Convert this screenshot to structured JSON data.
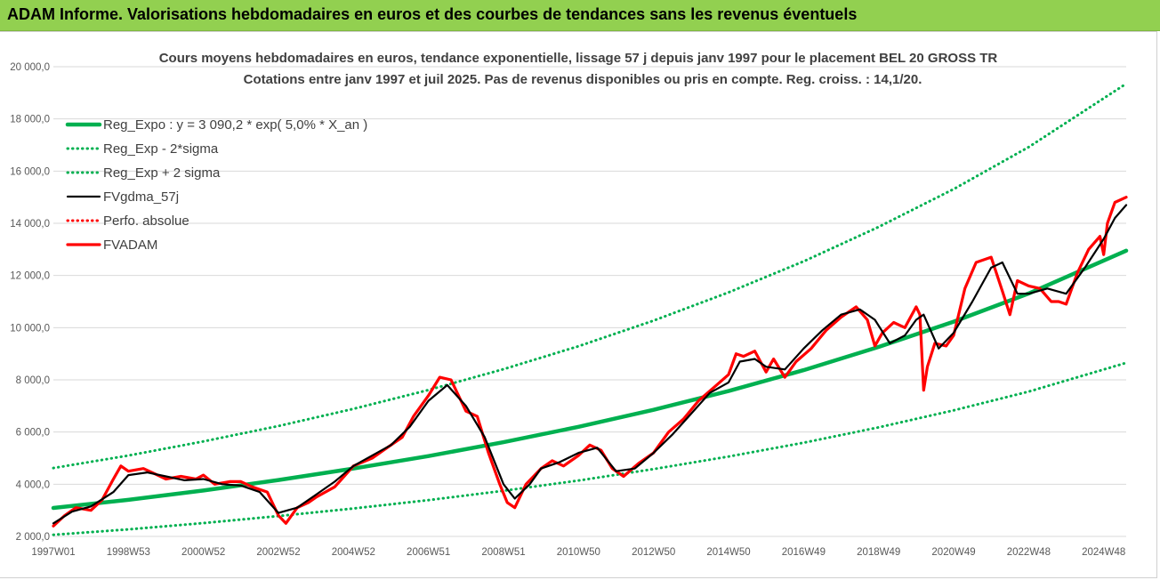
{
  "header": {
    "title": "ADAM Informe. Valorisations hebdomadaires en euros et des courbes de tendances sans les revenus éventuels"
  },
  "colors": {
    "banner": "#92d050",
    "regression": "#00b050",
    "price": "#ff0000",
    "smoothed": "#000000"
  },
  "chart_data": {
    "type": "line",
    "title": "Cours moyens hebdomadaires en euros, tendance exponentielle, lissage 57 j depuis janv 1997 pour le placement BEL 20 GROSS TR",
    "subtitle": "Cotations entre janv 1997 et juil 2025. Pas de revenus disponibles ou pris en compte. Reg. croiss. : 14,1/20.",
    "ylim": [
      2000,
      20000
    ],
    "xlim": [
      1997.0,
      2025.6
    ],
    "y_ticks": [
      "2 000,0",
      "4 000,0",
      "6 000,0",
      "8 000,0",
      "10 000,0",
      "12 000,0",
      "14 000,0",
      "16 000,0",
      "18 000,0",
      "20 000,0"
    ],
    "x_ticks": [
      {
        "label": "1997W01",
        "x": 1997.0
      },
      {
        "label": "1998W53",
        "x": 1999.0
      },
      {
        "label": "2000W52",
        "x": 2001.0
      },
      {
        "label": "2002W52",
        "x": 2003.0
      },
      {
        "label": "2004W52",
        "x": 2005.0
      },
      {
        "label": "2006W51",
        "x": 2007.0
      },
      {
        "label": "2008W51",
        "x": 2009.0
      },
      {
        "label": "2010W50",
        "x": 2011.0
      },
      {
        "label": "2012W50",
        "x": 2013.0
      },
      {
        "label": "2014W50",
        "x": 2015.0
      },
      {
        "label": "2016W49",
        "x": 2017.0
      },
      {
        "label": "2018W49",
        "x": 2019.0
      },
      {
        "label": "2020W49",
        "x": 2021.0
      },
      {
        "label": "2022W48",
        "x": 2023.0
      },
      {
        "label": "2024W48",
        "x": 2025.0
      }
    ],
    "grid": true,
    "legend_position": "top-left",
    "series": [
      {
        "name": "Reg_Expo : y = 3 090,2 * exp( 5,0% *  X_an )",
        "style": "solid-thick",
        "color": "#00b050",
        "x": [
          1997,
          1999,
          2001,
          2003,
          2005,
          2007,
          2009,
          2011,
          2013,
          2015,
          2017,
          2019,
          2021,
          2023,
          2025.6
        ],
        "values": [
          3090,
          3400,
          3760,
          4160,
          4600,
          5080,
          5610,
          6200,
          6850,
          7570,
          8370,
          9260,
          10230,
          11310,
          12950
        ]
      },
      {
        "name": "Reg_Exp - 2*sigma",
        "style": "dotted",
        "color": "#00b050",
        "x": [
          1997,
          1999,
          2001,
          2003,
          2005,
          2007,
          2009,
          2011,
          2013,
          2015,
          2017,
          2019,
          2021,
          2023,
          2025.6
        ],
        "values": [
          2060,
          2270,
          2510,
          2780,
          3070,
          3390,
          3750,
          4140,
          4580,
          5060,
          5590,
          6180,
          6830,
          7550,
          8650
        ]
      },
      {
        "name": "Reg_Exp + 2 sigma",
        "style": "dotted",
        "color": "#00b050",
        "x": [
          1997,
          1999,
          2001,
          2003,
          2005,
          2007,
          2009,
          2011,
          2013,
          2015,
          2017,
          2019,
          2021,
          2023,
          2025.6
        ],
        "values": [
          4620,
          5100,
          5640,
          6230,
          6890,
          7610,
          8410,
          9290,
          10270,
          11350,
          12540,
          13860,
          15310,
          16920,
          19350
        ]
      },
      {
        "name": "FVgdma_57j",
        "style": "solid",
        "color": "#000000",
        "x": [
          1997.0,
          1997.5,
          1998.0,
          1998.6,
          1999.0,
          1999.5,
          2000.0,
          2000.5,
          2001.0,
          2001.5,
          2002.0,
          2002.5,
          2003.0,
          2003.5,
          2004.0,
          2004.5,
          2005.0,
          2005.5,
          2006.0,
          2006.5,
          2007.0,
          2007.5,
          2008.0,
          2008.5,
          2009.0,
          2009.3,
          2009.7,
          2010.0,
          2010.5,
          2011.0,
          2011.5,
          2012.0,
          2012.5,
          2013.0,
          2013.5,
          2014.0,
          2014.5,
          2015.0,
          2015.3,
          2015.7,
          2016.0,
          2016.5,
          2017.0,
          2017.5,
          2018.0,
          2018.5,
          2018.9,
          2019.3,
          2019.7,
          2020.0,
          2020.2,
          2020.6,
          2021.0,
          2021.5,
          2022.0,
          2022.3,
          2022.7,
          2023.0,
          2023.5,
          2024.0,
          2024.5,
          2025.0,
          2025.3,
          2025.6
        ],
        "values": [
          2500,
          2950,
          3150,
          3700,
          4350,
          4450,
          4300,
          4150,
          4200,
          4000,
          3950,
          3700,
          2900,
          3100,
          3600,
          4100,
          4700,
          5100,
          5500,
          6200,
          7200,
          7800,
          7000,
          5800,
          4000,
          3450,
          4000,
          4600,
          4850,
          5200,
          5400,
          4500,
          4600,
          5200,
          5900,
          6700,
          7500,
          7900,
          8700,
          8800,
          8500,
          8400,
          9200,
          9900,
          10500,
          10700,
          10300,
          9400,
          9700,
          10300,
          10500,
          9200,
          9800,
          11000,
          12300,
          12500,
          11300,
          11300,
          11500,
          11300,
          12300,
          13400,
          14200,
          14700
        ]
      },
      {
        "name": "Perfo. absolue",
        "style": "dotted",
        "color": "#ff0000",
        "x": [],
        "values": []
      },
      {
        "name": "FVADAM",
        "style": "solid-thick",
        "color": "#ff0000",
        "x": [
          1997.0,
          1997.3,
          1997.6,
          1998.0,
          1998.3,
          1998.6,
          1998.8,
          1999.0,
          1999.4,
          1999.7,
          2000.0,
          2000.4,
          2000.8,
          2001.0,
          2001.3,
          2001.7,
          2002.0,
          2002.3,
          2002.7,
          2003.0,
          2003.2,
          2003.5,
          2003.8,
          2004.0,
          2004.5,
          2005.0,
          2005.5,
          2006.0,
          2006.3,
          2006.6,
          2007.0,
          2007.3,
          2007.6,
          2008.0,
          2008.3,
          2008.6,
          2008.9,
          2009.1,
          2009.3,
          2009.6,
          2010.0,
          2010.3,
          2010.6,
          2011.0,
          2011.3,
          2011.6,
          2011.9,
          2012.2,
          2012.6,
          2013.0,
          2013.4,
          2013.8,
          2014.2,
          2014.6,
          2015.0,
          2015.2,
          2015.4,
          2015.7,
          2016.0,
          2016.2,
          2016.5,
          2016.8,
          2017.2,
          2017.6,
          2018.0,
          2018.4,
          2018.7,
          2018.9,
          2019.1,
          2019.4,
          2019.7,
          2020.0,
          2020.1,
          2020.2,
          2020.3,
          2020.5,
          2020.8,
          2021.0,
          2021.3,
          2021.6,
          2022.0,
          2022.3,
          2022.5,
          2022.7,
          2023.0,
          2023.3,
          2023.6,
          2023.8,
          2024.0,
          2024.3,
          2024.6,
          2024.9,
          2025.0,
          2025.1,
          2025.3,
          2025.6
        ],
        "values": [
          2400,
          2800,
          3100,
          3000,
          3400,
          4200,
          4700,
          4500,
          4600,
          4400,
          4200,
          4300,
          4200,
          4350,
          4000,
          4100,
          4100,
          3900,
          3700,
          2800,
          2500,
          3100,
          3300,
          3500,
          3900,
          4700,
          5000,
          5500,
          5800,
          6600,
          7400,
          8100,
          8000,
          6800,
          6600,
          5200,
          4000,
          3300,
          3100,
          4000,
          4600,
          4900,
          4700,
          5100,
          5500,
          5300,
          4600,
          4300,
          4800,
          5200,
          6000,
          6500,
          7200,
          7700,
          8200,
          9000,
          8900,
          9100,
          8300,
          8800,
          8100,
          8700,
          9200,
          9900,
          10400,
          10800,
          10300,
          9300,
          9800,
          10200,
          10000,
          10800,
          10500,
          7600,
          8500,
          9400,
          9300,
          9700,
          11500,
          12500,
          12700,
          11400,
          10500,
          11800,
          11600,
          11500,
          11000,
          11000,
          10900,
          12100,
          13000,
          13500,
          12800,
          14000,
          14800,
          15000
        ]
      }
    ]
  }
}
